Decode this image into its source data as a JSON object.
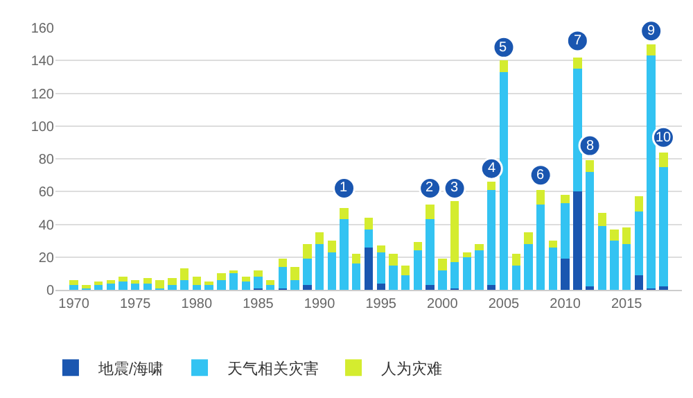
{
  "chart_data": {
    "type": "bar",
    "stacked": true,
    "grid": "y",
    "legend": "bottom",
    "x": [
      1970,
      1971,
      1972,
      1973,
      1974,
      1975,
      1976,
      1977,
      1978,
      1979,
      1980,
      1981,
      1982,
      1983,
      1984,
      1985,
      1986,
      1987,
      1988,
      1989,
      1990,
      1991,
      1992,
      1993,
      1994,
      1995,
      1996,
      1997,
      1998,
      1999,
      2000,
      2001,
      2002,
      2003,
      2004,
      2005,
      2006,
      2007,
      2008,
      2009,
      2010,
      2011,
      2012,
      2013,
      2014,
      2015,
      2016,
      2017,
      2018
    ],
    "xlim": [
      1968.5,
      2019.5
    ],
    "xticks": [
      1970,
      1975,
      1980,
      1985,
      1990,
      1995,
      2000,
      2005,
      2010,
      2015
    ],
    "ylim": [
      0,
      160
    ],
    "yticks": [
      0,
      20,
      40,
      60,
      80,
      100,
      120,
      140,
      160
    ],
    "series": [
      {
        "name": "地震/海啸",
        "color": "#1a56b0",
        "values": [
          0,
          0,
          0,
          0,
          0,
          0,
          0,
          0,
          0,
          0,
          0,
          0,
          0,
          0,
          0,
          1,
          0,
          1,
          0,
          3,
          0,
          0,
          0,
          0,
          26,
          4,
          0,
          0,
          0,
          3,
          0,
          1,
          0,
          0,
          3,
          0,
          0,
          0,
          0,
          0,
          19,
          60,
          2,
          0,
          0,
          0,
          9,
          1,
          2
        ]
      },
      {
        "name": "天气相关灾害",
        "color": "#33c3f2",
        "values": [
          3,
          1,
          3,
          4,
          5,
          4,
          4,
          1,
          3,
          6,
          3,
          3,
          6,
          10,
          5,
          7,
          3,
          13,
          6,
          16,
          28,
          23,
          43,
          16,
          11,
          19,
          15,
          9,
          24,
          40,
          12,
          16,
          20,
          24,
          58,
          133,
          15,
          28,
          52,
          26,
          34,
          75,
          70,
          39,
          30,
          28,
          39,
          142,
          73
        ]
      },
      {
        "name": "人为灾难",
        "color": "#d4ec2f",
        "values": [
          3,
          2,
          2,
          2,
          3,
          2,
          3,
          5,
          4,
          7,
          5,
          2,
          4,
          2,
          3,
          4,
          3,
          5,
          8,
          9,
          7,
          7,
          7,
          6,
          7,
          4,
          7,
          6,
          5,
          9,
          7,
          37,
          3,
          4,
          5,
          7,
          7,
          7,
          9,
          4,
          5,
          7,
          7,
          8,
          7,
          10,
          9,
          7,
          9
        ]
      }
    ],
    "annotations": [
      {
        "text": "1",
        "x": 1992,
        "y": 62
      },
      {
        "text": "2",
        "x": 1999,
        "y": 62
      },
      {
        "text": "3",
        "x": 2001,
        "y": 62
      },
      {
        "text": "4",
        "x": 2004,
        "y": 74
      },
      {
        "text": "5",
        "x": 2005,
        "y": 148
      },
      {
        "text": "6",
        "x": 2008,
        "y": 70
      },
      {
        "text": "7",
        "x": 2011,
        "y": 152
      },
      {
        "text": "8",
        "x": 2012,
        "y": 88
      },
      {
        "text": "9",
        "x": 2017,
        "y": 158
      },
      {
        "text": "10",
        "x": 2018,
        "y": 93
      }
    ]
  }
}
